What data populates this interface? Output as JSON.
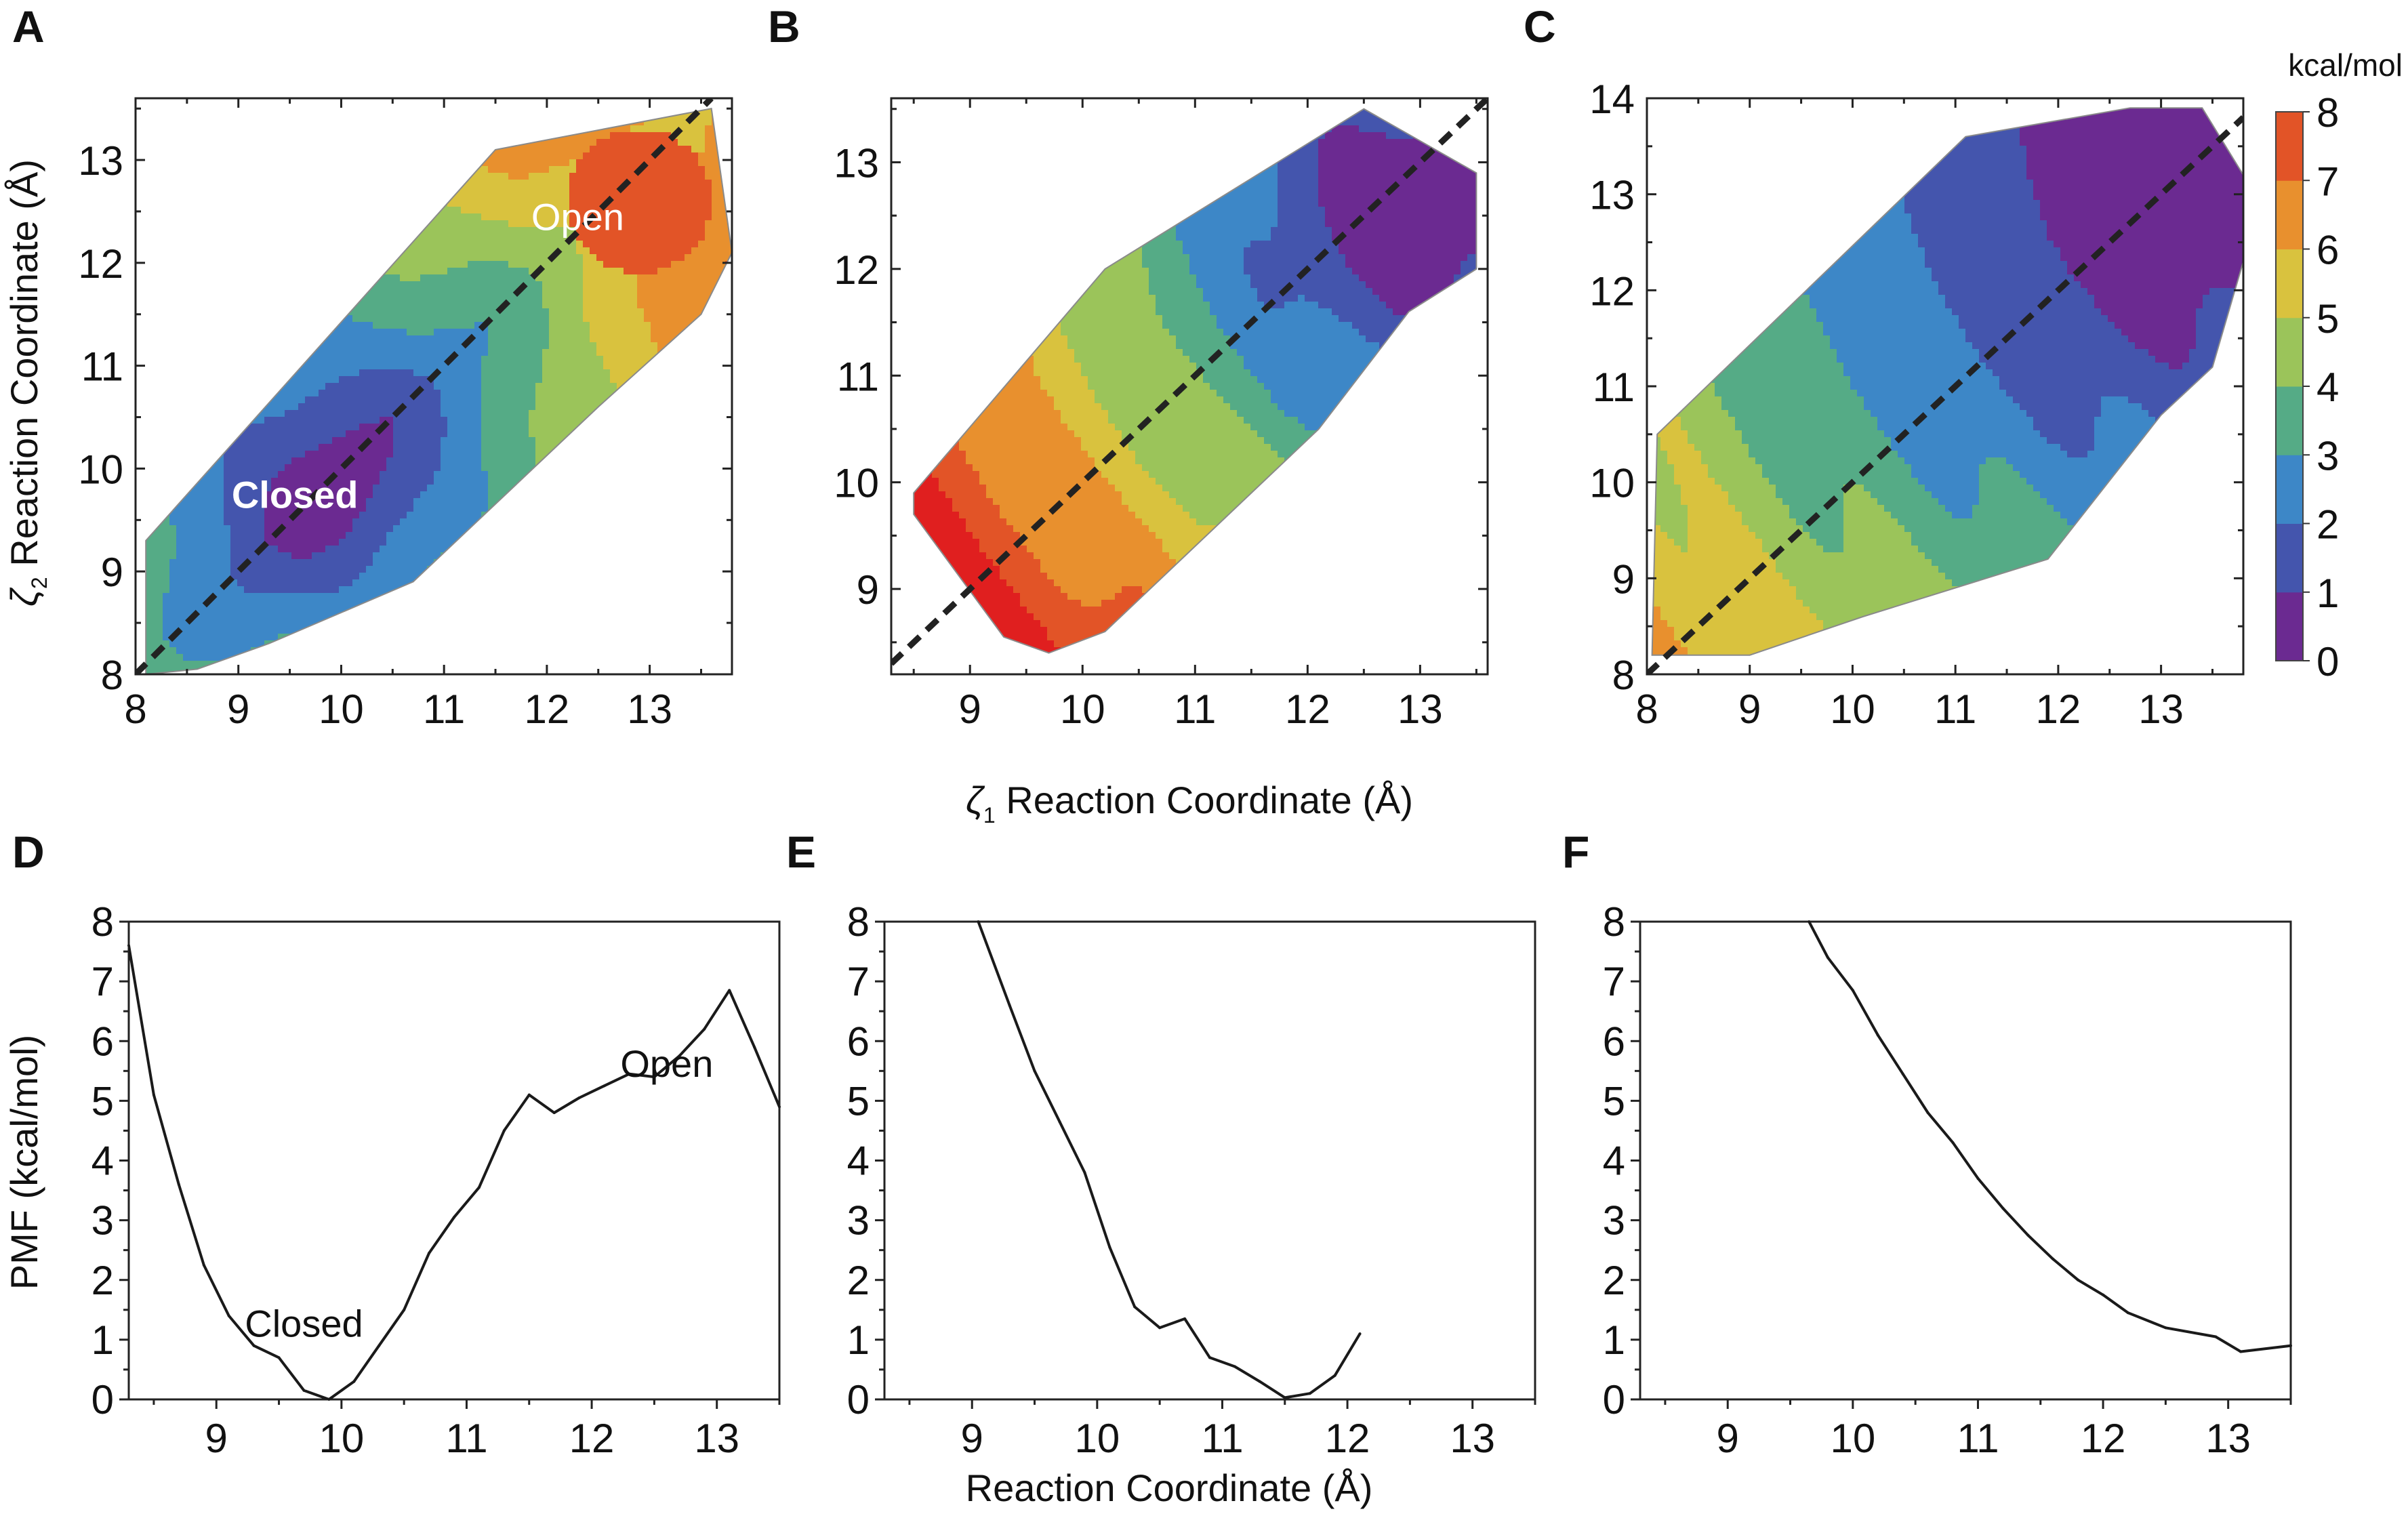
{
  "figure": {
    "colorbar": {
      "unit": "kcal/mol",
      "min": 0,
      "max": 8,
      "ticks": [
        0,
        1,
        2,
        3,
        4,
        5,
        6,
        7,
        8
      ],
      "colors": [
        "#6b2a91",
        "#4455ad",
        "#3d87c7",
        "#55ab86",
        "#9bc45a",
        "#d9c23e",
        "#e8902e",
        "#e25427",
        "#e01f1f"
      ]
    },
    "shared_xlabel_top": {
      "symbol": "ζ",
      "sub": "1",
      "text": "Reaction Coordinate (Å)"
    },
    "shared_xlabel_bottom": "Reaction Coordinate (Å)",
    "ylabel_top": {
      "symbol": "ζ",
      "sub": "2",
      "text": "Reaction Coordinate (Å)"
    },
    "ylabel_bottom": "PMF (kcal/mol)"
  },
  "chart_data": [
    {
      "panel": "A",
      "type": "heatmap",
      "title": "",
      "xlabel": "ζ1 Reaction Coordinate (Å)",
      "ylabel": "ζ2 Reaction Coordinate (Å)",
      "xlim": [
        8,
        13.8
      ],
      "ylim": [
        8,
        13.6
      ],
      "xticks": [
        8,
        9,
        10,
        11,
        12,
        13
      ],
      "yticks": [
        8,
        9,
        10,
        11,
        12,
        13
      ],
      "field": {
        "kind": "double_well",
        "min_center": [
          9.85,
          9.85
        ],
        "max_center": [
          12.9,
          12.6
        ],
        "edge_value": 8
      },
      "hull": [
        [
          8.1,
          8.0
        ],
        [
          8.6,
          8.05
        ],
        [
          9.3,
          8.3
        ],
        [
          10.7,
          8.9
        ],
        [
          12.5,
          10.6
        ],
        [
          13.5,
          11.5
        ],
        [
          13.8,
          12.1
        ],
        [
          13.6,
          13.5
        ],
        [
          11.5,
          13.1
        ],
        [
          8.1,
          9.3
        ]
      ],
      "annotations": [
        {
          "text": "Open",
          "x": 12.3,
          "y": 12.45,
          "color": "#ffffff",
          "bold": false
        },
        {
          "text": "Closed",
          "x": 9.55,
          "y": 9.75,
          "color": "#ffffff",
          "bold": true
        }
      ]
    },
    {
      "panel": "B",
      "type": "heatmap",
      "title": "",
      "xlabel": "ζ1 Reaction Coordinate (Å)",
      "ylabel": "",
      "xlim": [
        8.3,
        13.6
      ],
      "ylim": [
        8.2,
        13.6
      ],
      "xticks": [
        9,
        10,
        11,
        12,
        13
      ],
      "yticks": [
        9,
        10,
        11,
        12,
        13
      ],
      "field": {
        "kind": "gradient",
        "min_center": [
          13.0,
          12.6
        ],
        "slope": 2.6
      },
      "hull": [
        [
          8.5,
          9.7
        ],
        [
          9.3,
          8.55
        ],
        [
          9.7,
          8.4
        ],
        [
          10.2,
          8.6
        ],
        [
          10.9,
          9.3
        ],
        [
          12.1,
          10.5
        ],
        [
          12.9,
          11.6
        ],
        [
          13.5,
          12.0
        ],
        [
          13.5,
          12.9
        ],
        [
          12.5,
          13.5
        ],
        [
          10.2,
          12.0
        ],
        [
          8.5,
          9.9
        ]
      ],
      "annotations": []
    },
    {
      "panel": "C",
      "type": "heatmap",
      "title": "",
      "xlabel": "ζ1 Reaction Coordinate (Å)",
      "ylabel": "",
      "xlim": [
        8,
        13.8
      ],
      "ylim": [
        8,
        14
      ],
      "xticks": [
        8,
        9,
        10,
        11,
        12,
        13
      ],
      "yticks": [
        8,
        9,
        10,
        11,
        12,
        13,
        14
      ],
      "field": {
        "kind": "gradient",
        "min_center": [
          13.0,
          13.0
        ],
        "slope": 1.55
      },
      "hull": [
        [
          8.05,
          8.2
        ],
        [
          9.0,
          8.2
        ],
        [
          10.1,
          8.6
        ],
        [
          11.9,
          9.2
        ],
        [
          13.0,
          10.7
        ],
        [
          13.5,
          11.2
        ],
        [
          13.8,
          12.3
        ],
        [
          13.8,
          13.2
        ],
        [
          13.4,
          13.9
        ],
        [
          12.7,
          13.9
        ],
        [
          11.1,
          13.6
        ],
        [
          8.1,
          10.5
        ]
      ],
      "annotations": []
    },
    {
      "panel": "D",
      "type": "line",
      "title": "",
      "xlabel": "",
      "ylabel": "PMF (kcal/mol)",
      "xlim": [
        8.3,
        13.5
      ],
      "ylim": [
        0,
        8
      ],
      "xticks": [
        9,
        10,
        11,
        12,
        13
      ],
      "yticks": [
        0,
        1,
        2,
        3,
        4,
        5,
        6,
        7,
        8
      ],
      "x": [
        8.3,
        8.5,
        8.7,
        8.9,
        9.1,
        9.3,
        9.5,
        9.7,
        9.9,
        10.1,
        10.3,
        10.5,
        10.7,
        10.9,
        11.1,
        11.3,
        11.5,
        11.7,
        11.9,
        12.1,
        12.3,
        12.5,
        12.7,
        12.9,
        13.1,
        13.3,
        13.5
      ],
      "y": [
        7.6,
        5.1,
        3.6,
        2.25,
        1.4,
        0.9,
        0.7,
        0.15,
        0.0,
        0.3,
        0.9,
        1.5,
        2.45,
        3.05,
        3.55,
        4.5,
        5.1,
        4.8,
        5.05,
        5.25,
        5.45,
        5.4,
        5.75,
        6.2,
        6.85,
        5.9,
        4.9
      ],
      "annotations": [
        {
          "text": "Open",
          "x": 12.6,
          "y": 5.4
        },
        {
          "text": "Closed",
          "x": 9.7,
          "y": 1.05
        }
      ]
    },
    {
      "panel": "E",
      "type": "line",
      "title": "",
      "xlabel": "Reaction Coordinate (Å)",
      "ylabel": "",
      "xlim": [
        8.3,
        13.5
      ],
      "ylim": [
        0,
        8
      ],
      "xticks": [
        9,
        10,
        11,
        12,
        13
      ],
      "yticks": [
        0,
        1,
        2,
        3,
        4,
        5,
        6,
        7,
        8
      ],
      "x": [
        9.05,
        9.3,
        9.5,
        9.7,
        9.9,
        10.1,
        10.3,
        10.5,
        10.7,
        10.9,
        11.1,
        11.3,
        11.5,
        11.7,
        11.9,
        12.1
      ],
      "y": [
        8.0,
        6.6,
        5.5,
        4.65,
        3.8,
        2.55,
        1.55,
        1.2,
        1.35,
        0.7,
        0.55,
        0.3,
        0.03,
        0.1,
        0.4,
        1.1
      ],
      "annotations": []
    },
    {
      "panel": "F",
      "type": "line",
      "title": "",
      "xlabel": "",
      "ylabel": "",
      "xlim": [
        8.3,
        13.5
      ],
      "ylim": [
        0,
        8
      ],
      "xticks": [
        9,
        10,
        11,
        12,
        13
      ],
      "yticks": [
        0,
        1,
        2,
        3,
        4,
        5,
        6,
        7,
        8
      ],
      "x": [
        9.65,
        9.8,
        10.0,
        10.2,
        10.4,
        10.6,
        10.8,
        11.0,
        11.2,
        11.4,
        11.6,
        11.8,
        12.0,
        12.2,
        12.5,
        12.9,
        13.1,
        13.5
      ],
      "y": [
        8.0,
        7.4,
        6.85,
        6.1,
        5.45,
        4.8,
        4.3,
        3.7,
        3.2,
        2.75,
        2.35,
        2.0,
        1.75,
        1.45,
        1.2,
        1.05,
        0.8,
        0.9
      ],
      "annotations": []
    }
  ]
}
